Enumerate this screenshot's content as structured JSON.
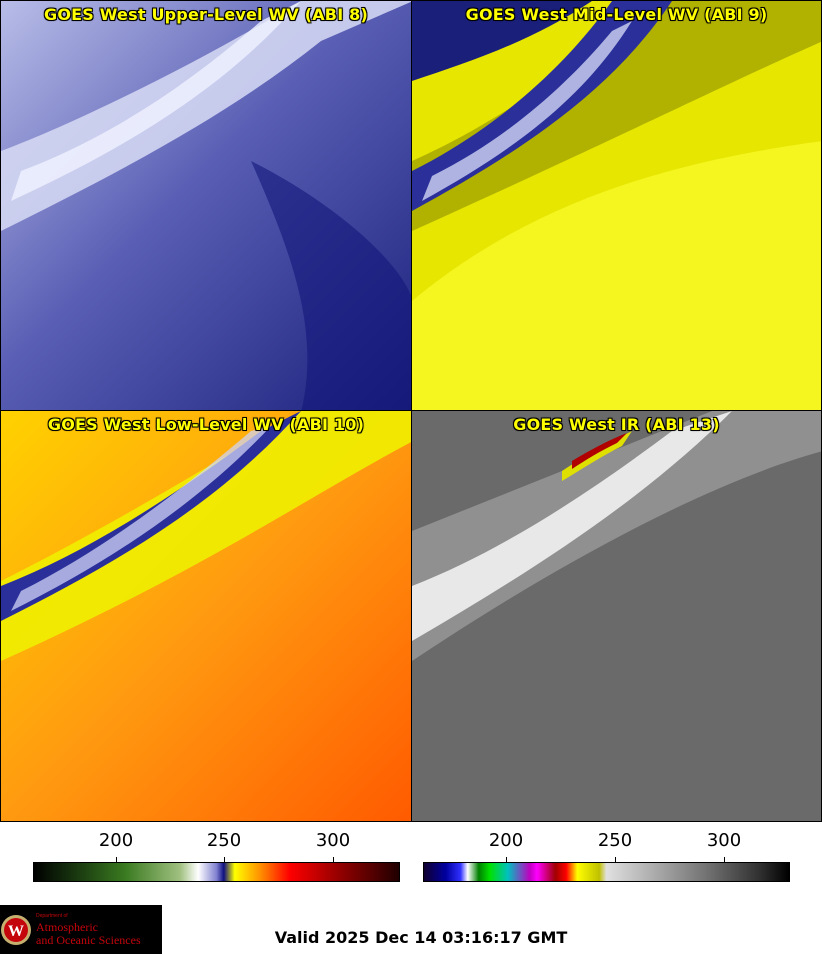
{
  "panels": [
    {
      "title": "GOES West Upper-Level WV (ABI 8)"
    },
    {
      "title": "GOES West Mid-Level WV (ABI 9)"
    },
    {
      "title": "GOES West Low-Level WV (ABI 10)"
    },
    {
      "title": "GOES West IR (ABI 13)"
    }
  ],
  "colorbars": {
    "wv": {
      "ticks": [
        "200",
        "250",
        "300"
      ]
    },
    "ir": {
      "ticks": [
        "200",
        "250",
        "300"
      ]
    }
  },
  "logo": {
    "dept_line": "Department of",
    "name_line1": "Atmospheric",
    "name_line2": "and Oceanic Sciences"
  },
  "valid_time": "Valid 2025 Dec 14 03:16:17 GMT",
  "colors": {
    "title_yellow": "#ffff00",
    "coast": "#8b6914",
    "logo_red": "#c5050c"
  }
}
